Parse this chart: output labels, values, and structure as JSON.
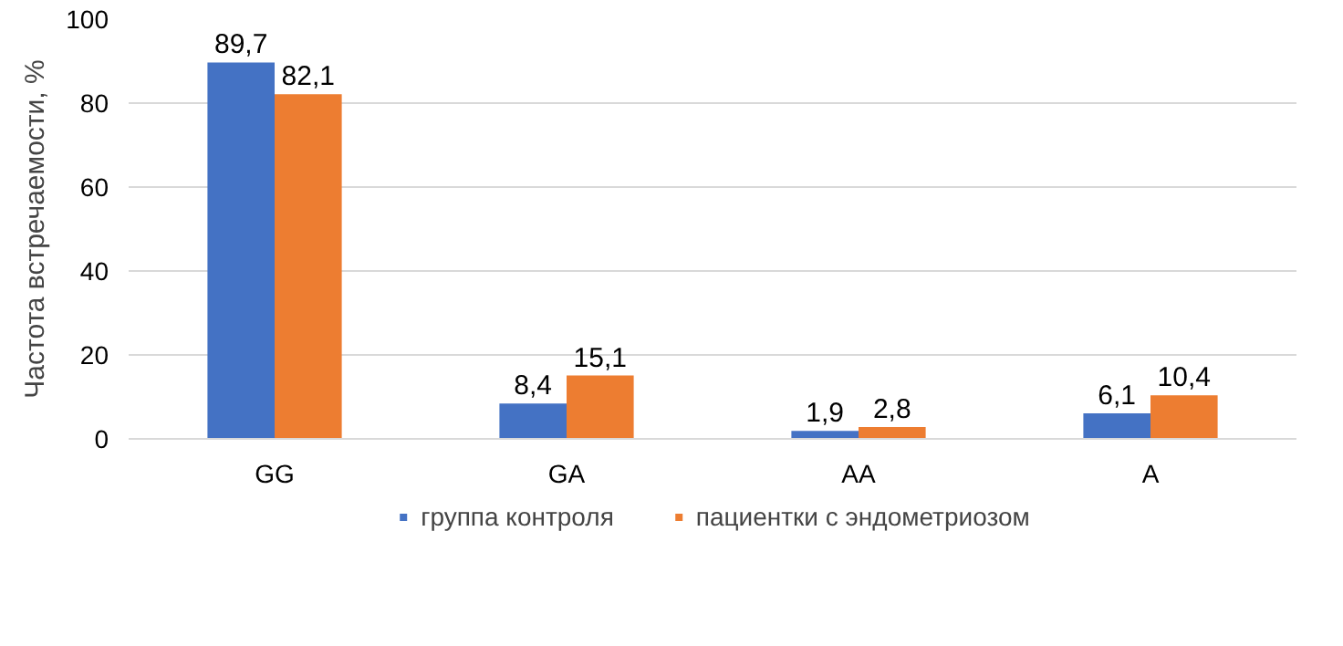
{
  "chart_data": {
    "type": "bar",
    "ylabel": "Частота встречаемости, %",
    "categories": [
      "GG",
      "GA",
      "AA",
      "A"
    ],
    "series": [
      {
        "name": "группа контроля",
        "color": "#4472c4",
        "values": [
          89.7,
          8.4,
          1.9,
          6.1
        ],
        "value_labels": [
          "89,7",
          "8,4",
          "1,9",
          "6,1"
        ]
      },
      {
        "name": "пациентки с эндометриозом",
        "color": "#ed7d31",
        "values": [
          82.1,
          15.1,
          2.8,
          10.4
        ],
        "value_labels": [
          "82,1",
          "15,1",
          "2,8",
          "10,4"
        ]
      }
    ],
    "ylim": [
      0,
      100
    ],
    "yticks": [
      0,
      20,
      40,
      60,
      80,
      100
    ],
    "grid": "y",
    "legend": "bottom"
  }
}
